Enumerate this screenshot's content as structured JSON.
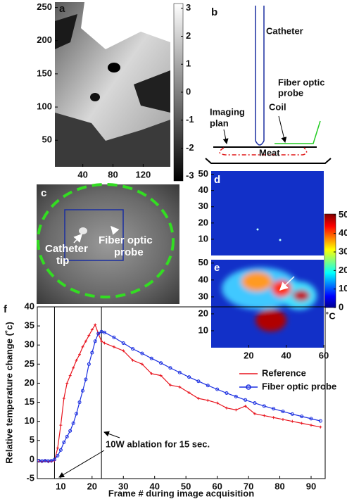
{
  "chart_data": [
    {
      "type": "image",
      "panel": "a",
      "colormap": "gray",
      "xlim": [
        3,
        156
      ],
      "xticks": [
        40,
        80,
        120
      ],
      "ylim": [
        10,
        258
      ],
      "yticks": [
        50,
        100,
        150,
        200,
        250
      ],
      "colorbar": {
        "lim": [
          -3.17,
          3.17
        ],
        "ticks": [
          -3,
          -2,
          -1,
          0,
          1,
          2,
          3
        ]
      }
    },
    {
      "type": "heatmap",
      "panel": "d",
      "colormap": "jet",
      "xlim": [
        0,
        60
      ],
      "ylim": [
        0,
        52
      ],
      "yticks": [
        10,
        20,
        30,
        40,
        50
      ]
    },
    {
      "type": "heatmap",
      "panel": "e",
      "colormap": "jet",
      "xlim": [
        0,
        60
      ],
      "xticks": [
        20,
        40,
        60
      ],
      "ylim": [
        0,
        52
      ],
      "yticks": [
        10,
        20,
        30,
        40,
        50
      ],
      "colorbar": {
        "lim": [
          0,
          50.5
        ],
        "ticks": [
          0,
          10,
          20,
          30,
          40,
          50
        ],
        "unit": "˚C"
      }
    },
    {
      "type": "line",
      "panel": "f",
      "y_label": "Relative temperature change (˚c)",
      "x_label": "Frame # during image acquisition",
      "annotation": "10W ablation for 15 sec.",
      "vlines": [
        8,
        23
      ],
      "legend": "right",
      "xlim": [
        2.5,
        94.5
      ],
      "xticks": [
        10,
        20,
        30,
        40,
        50,
        60,
        70,
        80,
        90
      ],
      "ylim": [
        -5,
        40
      ],
      "yticks": [
        -5,
        0,
        5,
        10,
        15,
        20,
        25,
        30,
        35,
        40
      ],
      "x": [
        3,
        4,
        5,
        6,
        7,
        8,
        9,
        10,
        11,
        12,
        13,
        14,
        15,
        16,
        17,
        18,
        19,
        20,
        21,
        22,
        23,
        24,
        27,
        30,
        33,
        36,
        39,
        42,
        45,
        48,
        51,
        54,
        57,
        60,
        63,
        66,
        69,
        72,
        75,
        78,
        81,
        84,
        87,
        90,
        93
      ],
      "series": [
        {
          "name": "Reference",
          "color": "#e8141e",
          "marker": "plus",
          "values": [
            -0.5,
            -0.6,
            -0.4,
            -0.6,
            -0.5,
            -0.3,
            3,
            9,
            16,
            20,
            22,
            24,
            26,
            27.5,
            29.5,
            31,
            32.5,
            34,
            35.3,
            33,
            31,
            30.5,
            29.5,
            28.5,
            26,
            25,
            22.5,
            22,
            19.5,
            19,
            17.5,
            16,
            15.5,
            14.8,
            13.5,
            13,
            14,
            12,
            11.5,
            11,
            10.5,
            10,
            9.5,
            9,
            8.5
          ]
        },
        {
          "name": "Fiber optic probe",
          "color": "#1a2ee0",
          "marker": "circle",
          "values": [
            -0.3,
            -0.4,
            -0.3,
            -0.4,
            -0.3,
            0,
            1,
            2.5,
            4.5,
            6,
            7.5,
            9.5,
            12,
            15,
            18,
            21,
            25,
            28,
            31,
            33,
            33.5,
            33.3,
            32,
            30.5,
            29,
            27.8,
            26.5,
            25.3,
            24,
            22.8,
            21.6,
            20.5,
            19.4,
            18.4,
            17.4,
            16.5,
            15.6,
            14.8,
            14,
            13.3,
            12.6,
            11.9,
            11.3,
            10.7,
            10.1
          ]
        }
      ]
    }
  ],
  "diagram": {
    "panel": "b",
    "catheter": "Catheter",
    "probe": [
      "Fiber optic",
      "probe"
    ],
    "coil": "Coil",
    "plane": [
      "Imaging",
      "plan"
    ],
    "meat": "Meat"
  },
  "photo": {
    "panel": "c",
    "catheter_tip": [
      "Catheter",
      "tip"
    ],
    "probe": [
      "Fiber optic",
      "probe"
    ]
  }
}
